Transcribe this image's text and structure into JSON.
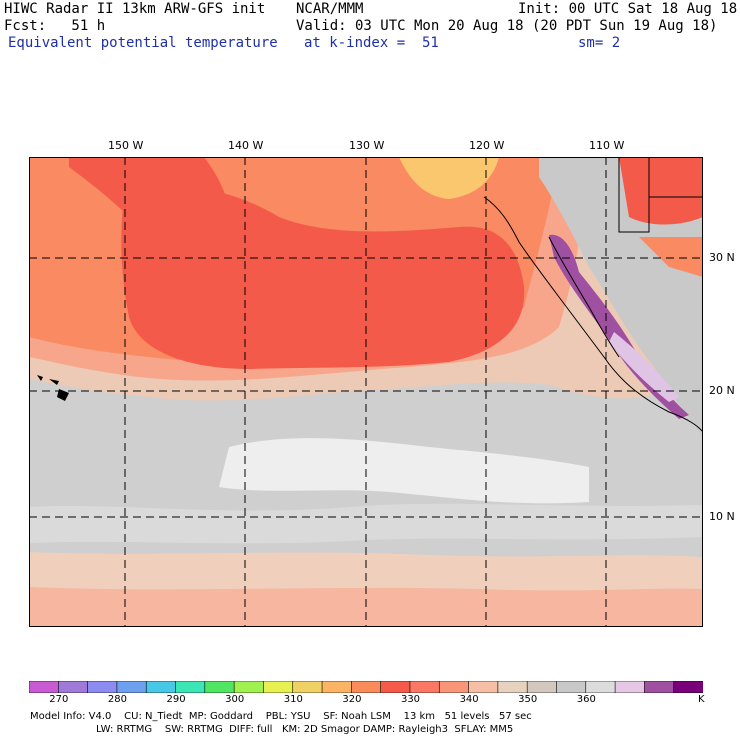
{
  "header": {
    "title": "HIWC Radar II 13km ARW-GFS init",
    "org": "NCAR/MMM",
    "init": "Init: 00 UTC Sat 18 Aug 18",
    "fcst": "Fcst:   51 h",
    "valid": "Valid: 03 UTC Mon 20 Aug 18 (20 PDT Sun 19 Aug 18)",
    "field": "Equivalent potential temperature",
    "level": "at k-index =  51",
    "smooth": "sm= 2"
  },
  "map": {
    "lon_labels": [
      "150 W",
      "140 W",
      "130 W",
      "120 W",
      "110 W"
    ],
    "lat_labels": [
      "30 N",
      "20 N",
      "10 N"
    ]
  },
  "colorbar": {
    "unit": "K",
    "tick_labels": [
      "270",
      "280",
      "290",
      "300",
      "310",
      "320",
      "330",
      "340",
      "350",
      "360"
    ],
    "colors": [
      "#c85ad2",
      "#a07ad8",
      "#8c8cf0",
      "#6ea0f0",
      "#46c8e6",
      "#3ce6b4",
      "#50e664",
      "#a0f050",
      "#e6f050",
      "#f0d264",
      "#fab464",
      "#fa8c5a",
      "#f55a4b",
      "#fa7864",
      "#fa9678",
      "#f5bea5",
      "#e6d2be",
      "#d2c8be",
      "#c8c8c8",
      "#dcdcdc",
      "#e6c8e6",
      "#a050a0",
      "#780078"
    ]
  },
  "footer": {
    "line1": "Model Info: V4.0    CU: N_Tiedt  MP: Goddard    PBL: YSU    SF: Noah LSM    13 km   51 levels   57 sec",
    "line2": "LW: RRTMG    SW: RRTMG  DIFF: full   KM: 2D Smagor DAMP: Rayleigh3  SFLAY: MM5"
  }
}
